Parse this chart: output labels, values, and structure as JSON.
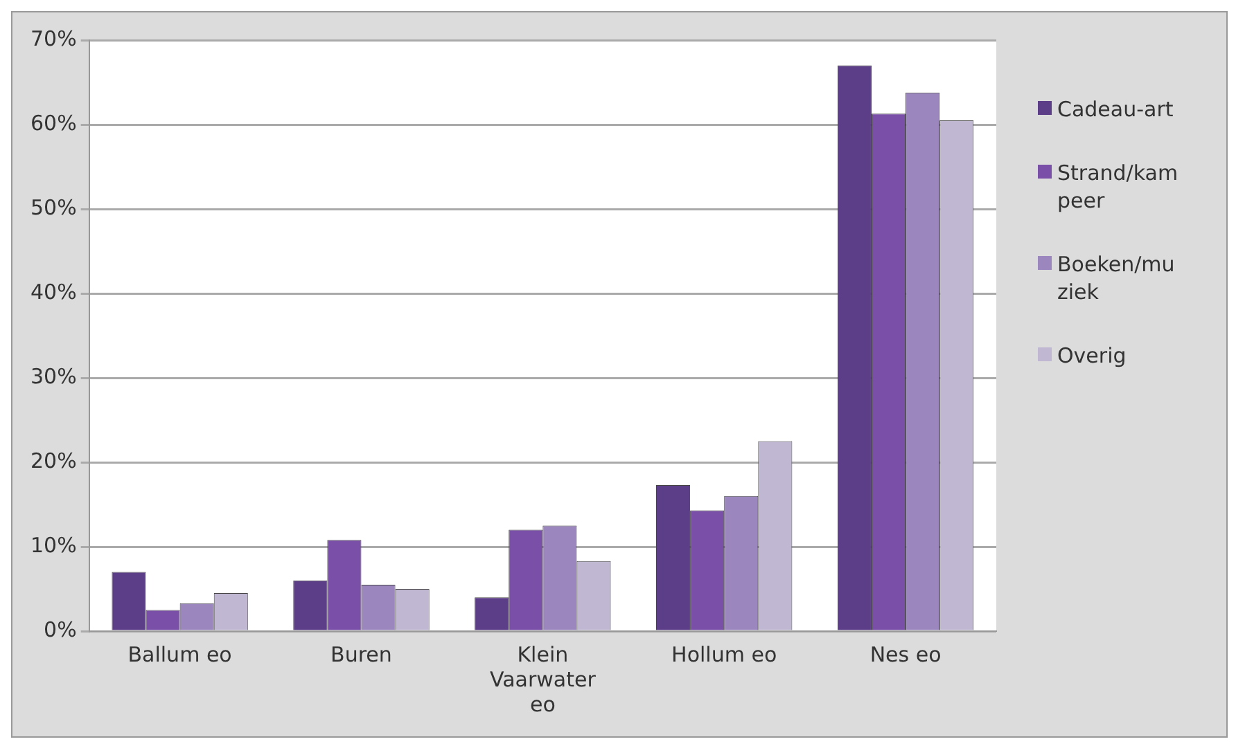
{
  "chart_data": {
    "type": "bar",
    "categories": [
      "Ballum eo",
      "Buren",
      "Klein Vaarwater eo",
      "Hollum eo",
      "Nes eo"
    ],
    "series": [
      {
        "name": "Cadeau-art",
        "color": "#5c3d87",
        "values": [
          7,
          6,
          4,
          17.3,
          67
        ]
      },
      {
        "name": "Strand/kampeer",
        "color": "#7a4fa8",
        "values": [
          2.5,
          10.8,
          12,
          14.3,
          61.3
        ]
      },
      {
        "name": "Boeken/muziek",
        "color": "#9b87bd",
        "values": [
          3.3,
          5.5,
          12.5,
          16,
          63.8
        ]
      },
      {
        "name": "Overig",
        "color": "#c0b8d2",
        "values": [
          4.5,
          5,
          8.3,
          22.5,
          60.5
        ]
      }
    ],
    "ylim": [
      0,
      70
    ],
    "yticks": [
      {
        "value": 0,
        "label": "0%"
      },
      {
        "value": 10,
        "label": "10%"
      },
      {
        "value": 20,
        "label": "20%"
      },
      {
        "value": 30,
        "label": "30%"
      },
      {
        "value": 40,
        "label": "40%"
      },
      {
        "value": 50,
        "label": "50%"
      },
      {
        "value": 60,
        "label": "60%"
      },
      {
        "value": 70,
        "label": "70%"
      }
    ],
    "grid": "y",
    "legend": "right"
  }
}
